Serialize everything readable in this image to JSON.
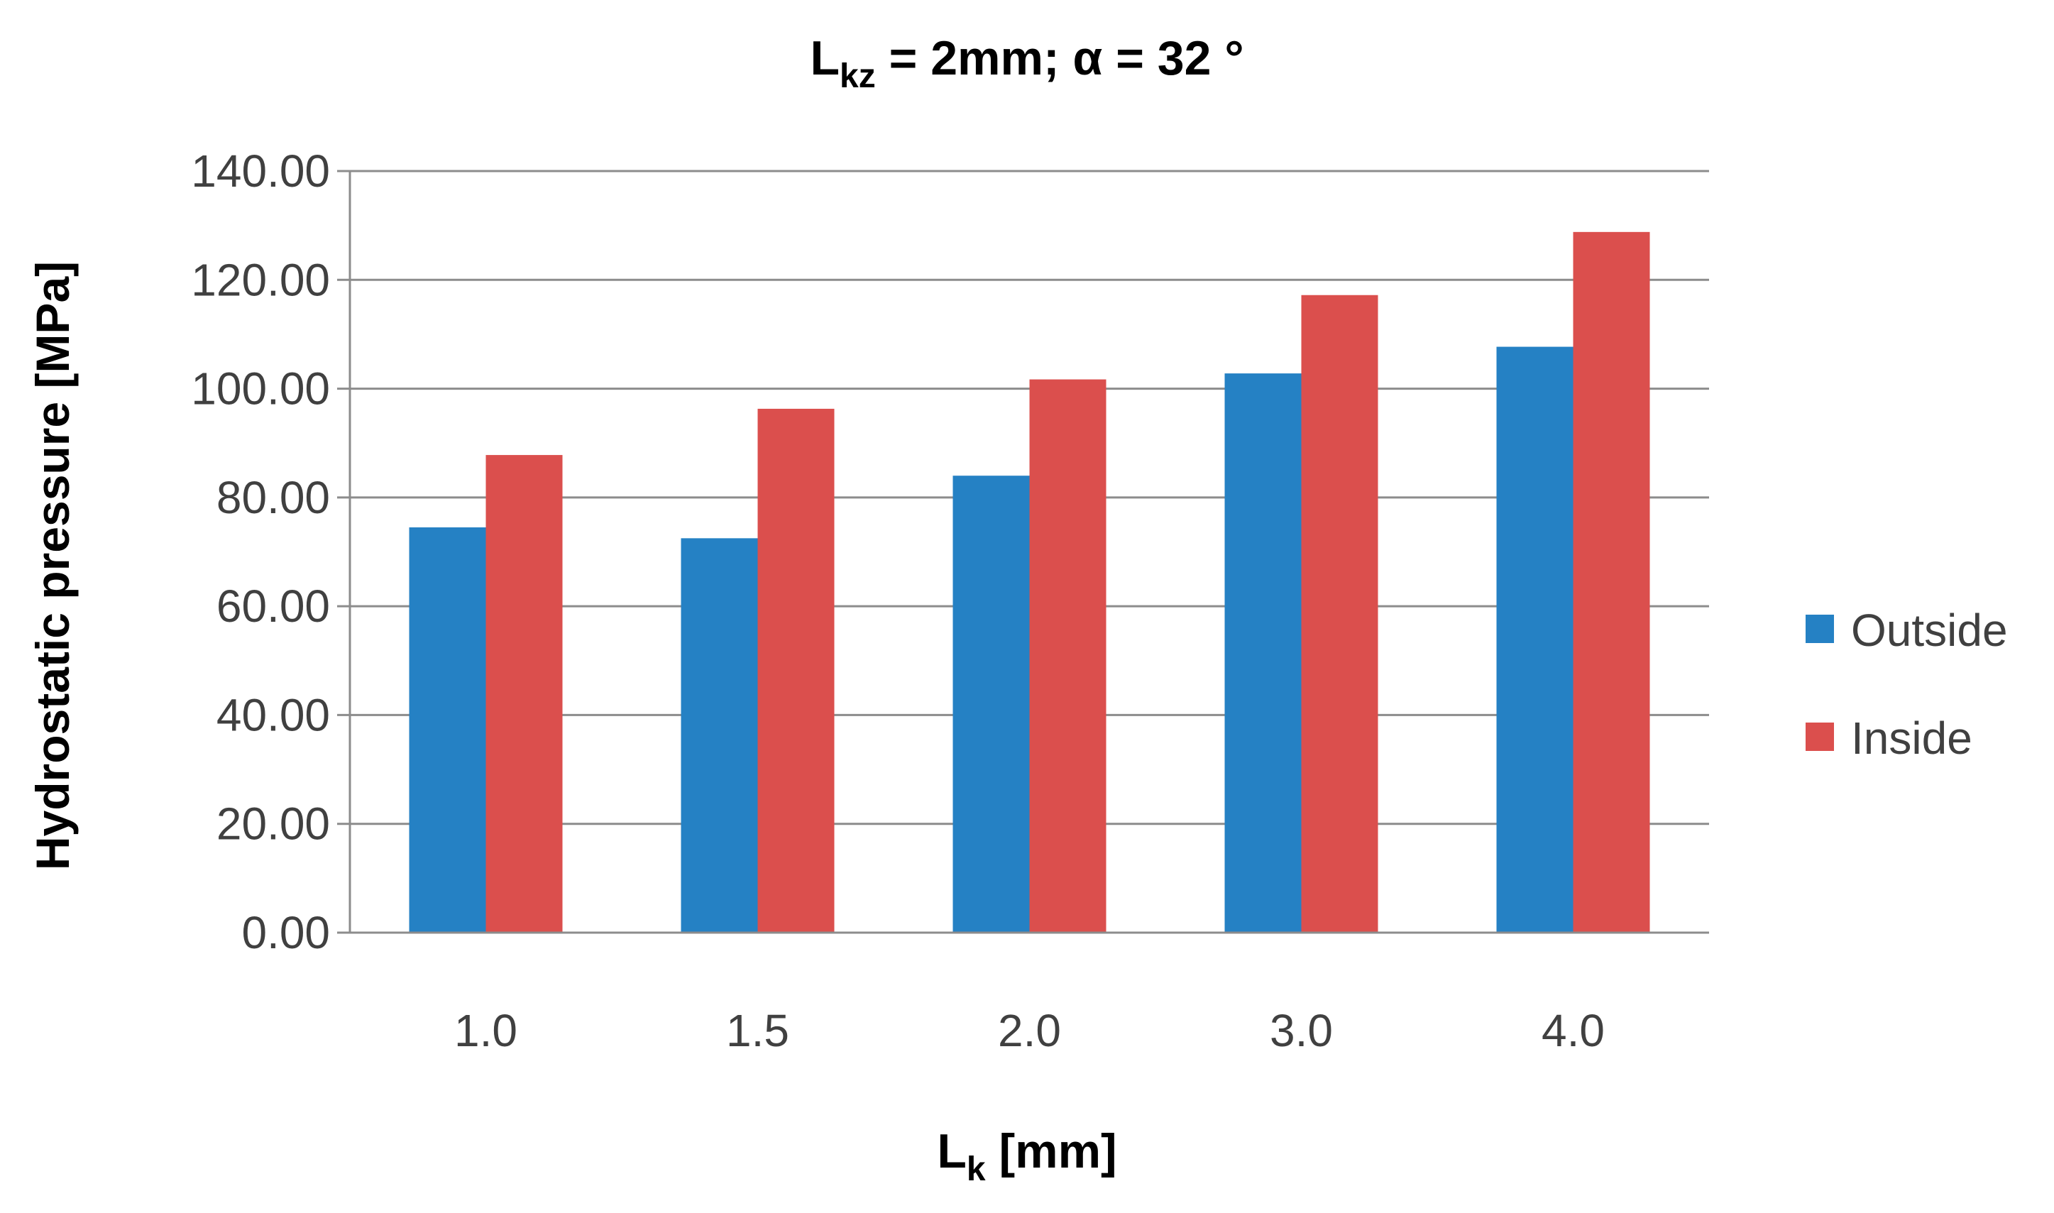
{
  "chart_data": {
    "type": "bar",
    "title": {
      "main": "L",
      "sub": "kz",
      "rest": " = 2mm; α = 32 °"
    },
    "xlabel": {
      "main": "L",
      "sub": "k",
      "rest": " [mm]"
    },
    "ylabel": "Hydrostatic pressure [MPa]",
    "categories": [
      "1.0",
      "1.5",
      "2.0",
      "3.0",
      "4.0"
    ],
    "series": [
      {
        "name": "Outside",
        "color": "#2581c4",
        "values": [
          74.5,
          72.5,
          84.0,
          102.8,
          107.7
        ]
      },
      {
        "name": "Inside",
        "color": "#db4f4d",
        "values": [
          87.8,
          96.3,
          101.7,
          117.2,
          128.8
        ]
      }
    ],
    "ylim": [
      0,
      140
    ],
    "yticks": [
      "0.00",
      "20.00",
      "40.00",
      "60.00",
      "80.00",
      "100.00",
      "120.00",
      "140.00"
    ],
    "grid": true,
    "legend_position": "right",
    "colors": {
      "grid": "#8c8c8c",
      "axis": "#8c8c8c",
      "tick_text": "#404040"
    }
  }
}
